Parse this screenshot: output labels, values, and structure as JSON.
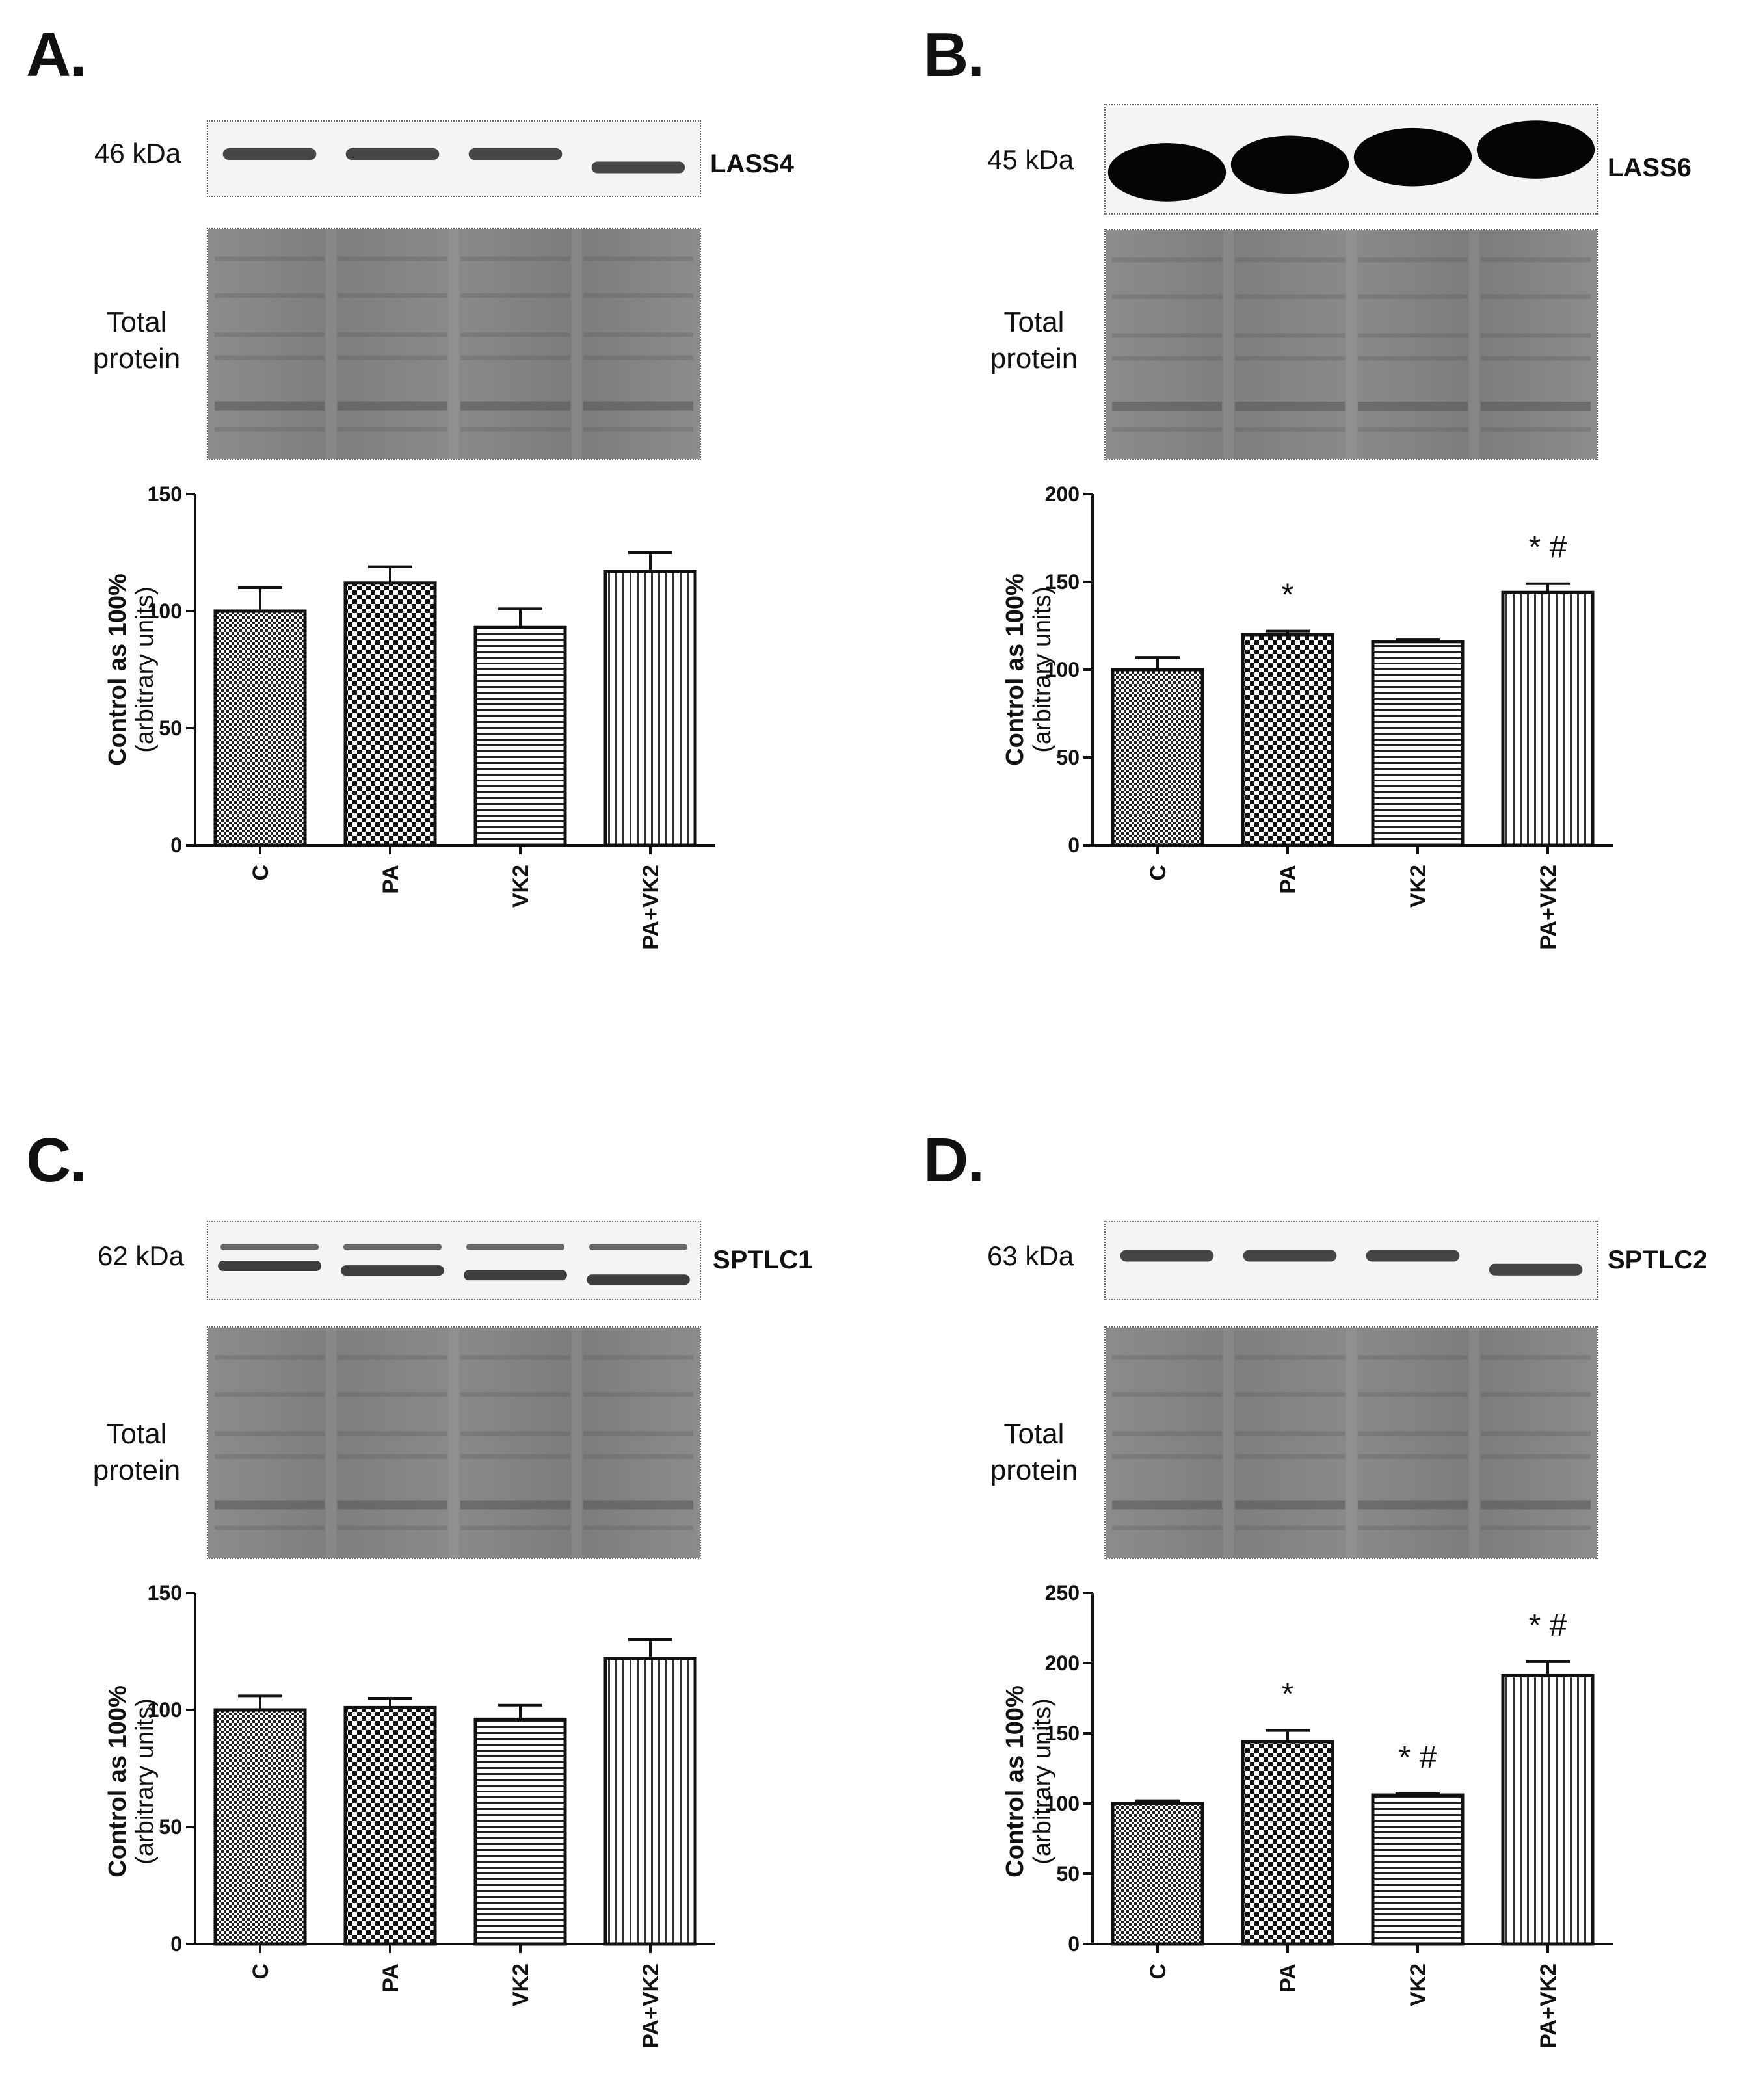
{
  "colors": {
    "ink": "#111111",
    "band": "#1a1a1a",
    "gel": "#8a8a8a"
  },
  "panels": [
    {
      "letter": "A.",
      "kda": "46 kDa",
      "protein": "LASS4",
      "total_protein": [
        "Total",
        "protein"
      ],
      "band_intensity": "medium",
      "ylabel_main": "Control as 100%",
      "ylabel_sub": "(arbitrary units)"
    },
    {
      "letter": "B.",
      "kda": "45 kDa",
      "protein": "LASS6",
      "total_protein": [
        "Total",
        "protein"
      ],
      "band_intensity": "strong",
      "ylabel_main": "Control as 100%",
      "ylabel_sub": "(arbitrary units)"
    },
    {
      "letter": "C.",
      "kda": "62 kDa",
      "protein": "SPTLC1",
      "total_protein": [
        "Total",
        "protein"
      ],
      "band_intensity": "double",
      "ylabel_main": "Control as 100%",
      "ylabel_sub": "(arbitrary units)"
    },
    {
      "letter": "D.",
      "kda": "63 kDa",
      "protein": "SPTLC2",
      "total_protein": [
        "Total",
        "protein"
      ],
      "band_intensity": "medium",
      "ylabel_main": "Control as 100%",
      "ylabel_sub": "(arbitrary units)"
    }
  ],
  "chart_data": [
    {
      "type": "bar",
      "panel": "A",
      "categories": [
        "C",
        "PA",
        "VK2",
        "PA+VK2"
      ],
      "values": [
        100,
        112,
        93,
        117
      ],
      "errors": [
        10,
        7,
        8,
        8
      ],
      "significance": [
        "",
        "",
        "",
        ""
      ],
      "ylim": [
        0,
        150
      ],
      "yticks": [
        0,
        50,
        100,
        150
      ],
      "patterns": [
        "checker-fine",
        "checker-coarse",
        "horizontal",
        "vertical"
      ]
    },
    {
      "type": "bar",
      "panel": "B",
      "categories": [
        "C",
        "PA",
        "VK2",
        "PA+VK2"
      ],
      "values": [
        100,
        120,
        116,
        144
      ],
      "errors": [
        7,
        2,
        1,
        5
      ],
      "significance": [
        "",
        "*",
        "",
        "* #"
      ],
      "ylim": [
        0,
        200
      ],
      "yticks": [
        0,
        50,
        100,
        150,
        200
      ],
      "patterns": [
        "checker-fine",
        "checker-coarse",
        "horizontal",
        "vertical"
      ]
    },
    {
      "type": "bar",
      "panel": "C",
      "categories": [
        "C",
        "PA",
        "VK2",
        "PA+VK2"
      ],
      "values": [
        100,
        101,
        96,
        122
      ],
      "errors": [
        6,
        4,
        6,
        8
      ],
      "significance": [
        "",
        "",
        "",
        ""
      ],
      "ylim": [
        0,
        150
      ],
      "yticks": [
        0,
        50,
        100,
        150
      ],
      "patterns": [
        "checker-fine",
        "checker-coarse",
        "horizontal",
        "vertical"
      ]
    },
    {
      "type": "bar",
      "panel": "D",
      "categories": [
        "C",
        "PA",
        "VK2",
        "PA+VK2"
      ],
      "values": [
        100,
        144,
        106,
        191
      ],
      "errors": [
        2,
        8,
        1,
        10
      ],
      "significance": [
        "",
        "*",
        "* #",
        "* #"
      ],
      "ylim": [
        0,
        250
      ],
      "yticks": [
        0,
        50,
        100,
        150,
        200,
        250
      ],
      "patterns": [
        "checker-fine",
        "checker-coarse",
        "horizontal",
        "vertical"
      ]
    }
  ]
}
